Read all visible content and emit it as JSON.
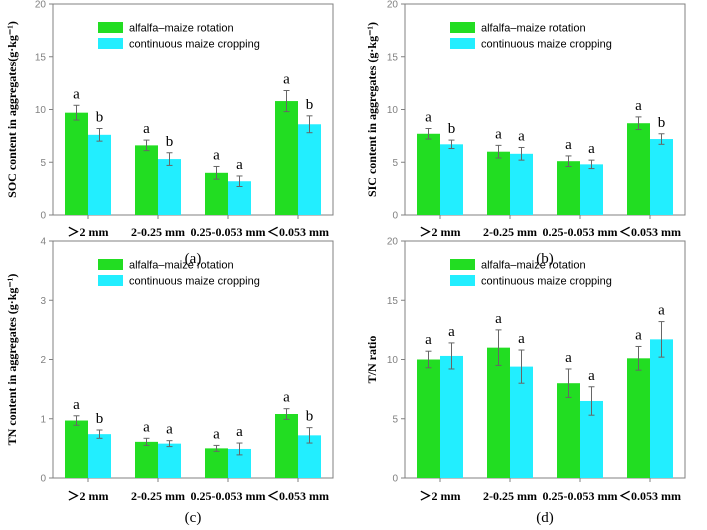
{
  "colors": {
    "alfalfa": "#22DD22",
    "continuous": "#22EEFF",
    "axis": "#808080",
    "errorbar": "#666666"
  },
  "chart_data": [
    {
      "type": "bar",
      "panel_label": "(a)",
      "ylabel": "SOC content in aggregates(g·kg⁻¹)",
      "ylim": [
        0,
        20
      ],
      "yticks": [
        "0",
        "5",
        "10",
        "15",
        "20"
      ],
      "categories": [
        ">2 mm",
        "2-0.25 mm",
        "0.25-0.053 mm",
        "<0.053 mm"
      ],
      "category_labels": [
        "＞2 mm",
        "2-0.25 mm",
        "0.25-0.053 mm",
        "＜0.053 mm"
      ],
      "legend": [
        "alfalfa–maize rotation",
        "continuous maize cropping"
      ],
      "series": [
        {
          "name": "alfalfa–maize rotation",
          "values": [
            9.7,
            6.6,
            4.0,
            10.8
          ],
          "errors": [
            0.7,
            0.5,
            0.6,
            1.0
          ],
          "sig": [
            "a",
            "a",
            "a",
            "a"
          ]
        },
        {
          "name": "continuous maize cropping",
          "values": [
            7.6,
            5.3,
            3.2,
            8.6
          ],
          "errors": [
            0.6,
            0.6,
            0.5,
            0.8
          ],
          "sig": [
            "b",
            "b",
            "a",
            "b"
          ]
        }
      ]
    },
    {
      "type": "bar",
      "panel_label": "(b)",
      "ylabel": "SIC content in aggregates (g·kg⁻¹)",
      "ylim": [
        0,
        20
      ],
      "yticks": [
        "0",
        "5",
        "10",
        "15",
        "20"
      ],
      "categories": [
        ">2 mm",
        "2-0.25 mm",
        "0.25-0.053 mm",
        "<0.053 mm"
      ],
      "category_labels": [
        "＞2 mm",
        "2-0.25 mm",
        "0.25-0.053 mm",
        "＜0.053 mm"
      ],
      "legend": [
        "alfalfa–maize rotation",
        "continuous maize cropping"
      ],
      "series": [
        {
          "name": "alfalfa–maize rotation",
          "values": [
            7.7,
            6.0,
            5.1,
            8.7
          ],
          "errors": [
            0.5,
            0.6,
            0.5,
            0.6
          ],
          "sig": [
            "a",
            "a",
            "a",
            "a"
          ]
        },
        {
          "name": "continuous maize cropping",
          "values": [
            6.7,
            5.8,
            4.8,
            7.2
          ],
          "errors": [
            0.4,
            0.6,
            0.4,
            0.5
          ],
          "sig": [
            "b",
            "a",
            "a",
            "b"
          ]
        }
      ]
    },
    {
      "type": "bar",
      "panel_label": "(c)",
      "ylabel": "TN content in aggregates (g·kg⁻¹)",
      "ylim": [
        0,
        4
      ],
      "yticks": [
        "0",
        "1",
        "2",
        "3",
        "4"
      ],
      "categories": [
        ">2 mm",
        "2-0.25 mm",
        "0.25-0.053 mm",
        "<0.053 mm"
      ],
      "category_labels": [
        "＞2 mm",
        "2-0.25 mm",
        "0.25-0.053 mm",
        "＜0.053 mm"
      ],
      "legend": [
        "alfalfa–maize rotation",
        "continuous maize cropping"
      ],
      "series": [
        {
          "name": "alfalfa–maize rotation",
          "values": [
            0.97,
            0.61,
            0.5,
            1.08
          ],
          "errors": [
            0.08,
            0.06,
            0.05,
            0.09
          ],
          "sig": [
            "a",
            "a",
            "a",
            "a"
          ]
        },
        {
          "name": "continuous maize cropping",
          "values": [
            0.74,
            0.58,
            0.49,
            0.72
          ],
          "errors": [
            0.07,
            0.05,
            0.1,
            0.13
          ],
          "sig": [
            "b",
            "a",
            "a",
            "b"
          ]
        }
      ]
    },
    {
      "type": "bar",
      "panel_label": "(d)",
      "ylabel": "T/N ratio",
      "ylim": [
        0,
        20
      ],
      "yticks": [
        "0",
        "5",
        "10",
        "15",
        "20"
      ],
      "categories": [
        ">2 mm",
        "2-0.25 mm",
        "0.25-0.053 mm",
        "<0.053 mm"
      ],
      "category_labels": [
        "＞2 mm",
        "2-0.25 mm",
        "0.25-0.053 mm",
        "＜0.053 mm"
      ],
      "legend": [
        "alfalfa–maize rotation",
        "continuous maize cropping"
      ],
      "series": [
        {
          "name": "alfalfa–maize rotation",
          "values": [
            10.0,
            11.0,
            8.0,
            10.1
          ],
          "errors": [
            0.7,
            1.5,
            1.2,
            1.0
          ],
          "sig": [
            "a",
            "a",
            "a",
            "a"
          ]
        },
        {
          "name": "continuous maize cropping",
          "values": [
            10.3,
            9.4,
            6.5,
            11.7
          ],
          "errors": [
            1.1,
            1.4,
            1.2,
            1.5
          ],
          "sig": [
            "a",
            "a",
            "a",
            "a"
          ]
        }
      ]
    }
  ]
}
